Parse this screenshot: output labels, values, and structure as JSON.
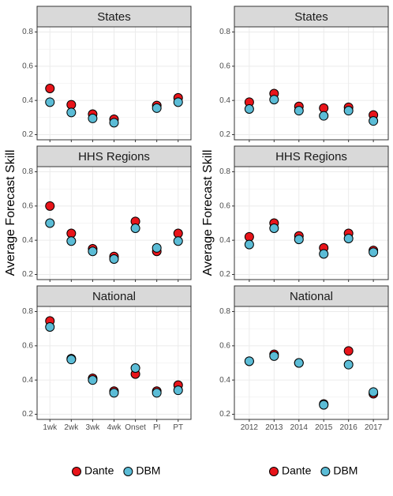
{
  "colors": {
    "dante": "#e8141a",
    "dbm": "#5bbcd6",
    "strip_bg": "#d9d9d9",
    "grid": "#ebebeb",
    "tick_text": "#4d4d4d"
  },
  "legend": [
    {
      "label": "Dante",
      "color_key": "dante"
    },
    {
      "label": "DBM",
      "color_key": "dbm"
    }
  ],
  "chart_data": [
    {
      "type": "scatter",
      "ylabel": "Average Forecast Skill",
      "ylim": [
        0.17,
        0.83
      ],
      "yticks": [
        0.2,
        0.4,
        0.6,
        0.8
      ],
      "ytick_labels": [
        "0.2",
        "0.4",
        "0.6",
        "0.8"
      ],
      "categories": [
        "1wk",
        "2wk",
        "3wk",
        "4wk",
        "Onset",
        "PI",
        "PT"
      ],
      "panels": [
        {
          "title": "States",
          "show_xticks": false,
          "series": [
            {
              "name": "Dante",
              "values": [
                0.47,
                0.375,
                0.32,
                0.29,
                null,
                0.37,
                0.415
              ]
            },
            {
              "name": "DBM",
              "values": [
                0.39,
                0.33,
                0.295,
                0.27,
                null,
                0.355,
                0.39
              ]
            }
          ]
        },
        {
          "title": "HHS Regions",
          "show_xticks": false,
          "series": [
            {
              "name": "Dante",
              "values": [
                0.6,
                0.44,
                0.35,
                0.305,
                0.51,
                0.335,
                0.44
              ]
            },
            {
              "name": "DBM",
              "values": [
                0.5,
                0.395,
                0.335,
                0.29,
                0.47,
                0.355,
                0.395
              ]
            }
          ]
        },
        {
          "title": "National",
          "show_xticks": true,
          "series": [
            {
              "name": "Dante",
              "values": [
                0.745,
                0.525,
                0.41,
                0.335,
                0.435,
                0.335,
                0.37
              ]
            },
            {
              "name": "DBM",
              "values": [
                0.71,
                0.52,
                0.4,
                0.325,
                0.47,
                0.325,
                0.34
              ]
            }
          ]
        }
      ]
    },
    {
      "type": "scatter",
      "ylabel": "Average Forecast Skill",
      "ylim": [
        0.17,
        0.83
      ],
      "yticks": [
        0.2,
        0.4,
        0.6,
        0.8
      ],
      "ytick_labels": [
        "0.2",
        "0.4",
        "0.6",
        "0.8"
      ],
      "categories": [
        "2012",
        "2013",
        "2014",
        "2015",
        "2016",
        "2017"
      ],
      "panels": [
        {
          "title": "States",
          "show_xticks": false,
          "series": [
            {
              "name": "Dante",
              "values": [
                0.39,
                0.44,
                0.365,
                0.355,
                0.36,
                0.315
              ]
            },
            {
              "name": "DBM",
              "values": [
                0.35,
                0.405,
                0.34,
                0.31,
                0.34,
                0.28
              ]
            }
          ]
        },
        {
          "title": "HHS Regions",
          "show_xticks": false,
          "series": [
            {
              "name": "Dante",
              "values": [
                0.42,
                0.5,
                0.425,
                0.355,
                0.44,
                0.34
              ]
            },
            {
              "name": "DBM",
              "values": [
                0.375,
                0.47,
                0.405,
                0.32,
                0.41,
                0.33
              ]
            }
          ]
        },
        {
          "title": "National",
          "show_xticks": true,
          "series": [
            {
              "name": "Dante",
              "values": [
                0.51,
                0.55,
                0.5,
                0.26,
                0.57,
                0.32
              ]
            },
            {
              "name": "DBM",
              "values": [
                0.51,
                0.54,
                0.5,
                0.255,
                0.49,
                0.33
              ]
            }
          ]
        }
      ]
    }
  ]
}
